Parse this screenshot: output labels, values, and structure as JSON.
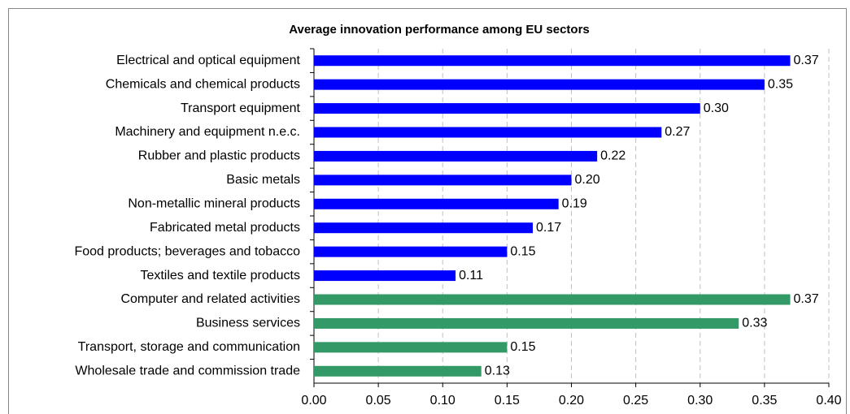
{
  "chart_data": {
    "type": "bar",
    "orientation": "horizontal",
    "title": "Average innovation performance among EU sectors",
    "categories": [
      "Electrical and optical equipment",
      "Chemicals and chemical products",
      "Transport equipment",
      "Machinery and equipment n.e.c.",
      "Rubber and plastic products",
      "Basic metals",
      "Non-metallic mineral products",
      "Fabricated metal products",
      "Food products; beverages and tobacco",
      "Textiles and textile products",
      "Computer and related activities",
      "Business services",
      "Transport, storage and communication",
      "Wholesale trade and commission trade"
    ],
    "values": [
      0.37,
      0.35,
      0.3,
      0.27,
      0.22,
      0.2,
      0.19,
      0.17,
      0.15,
      0.11,
      0.37,
      0.33,
      0.15,
      0.13
    ],
    "value_labels": [
      "0.37",
      "0.35",
      "0.30",
      "0.27",
      "0.22",
      "0.20",
      "0.19",
      "0.17",
      "0.15",
      "0.11",
      "0.37",
      "0.33",
      "0.15",
      "0.13"
    ],
    "colors": [
      "#0000ff",
      "#0000ff",
      "#0000ff",
      "#0000ff",
      "#0000ff",
      "#0000ff",
      "#0000ff",
      "#0000ff",
      "#0000ff",
      "#0000ff",
      "#339966",
      "#339966",
      "#339966",
      "#339966"
    ],
    "xlim": [
      0,
      0.4
    ],
    "xticks": [
      {
        "value": 0,
        "label": "0.00"
      },
      0.05,
      {
        "value": 0.1,
        "label": "0.10"
      },
      0.15,
      {
        "value": 0.2,
        "label": "0.20"
      },
      0.25,
      {
        "value": 0.3,
        "label": "0.30"
      },
      0.35,
      {
        "value": 0.4,
        "label": "0.40"
      }
    ],
    "grid": true
  }
}
